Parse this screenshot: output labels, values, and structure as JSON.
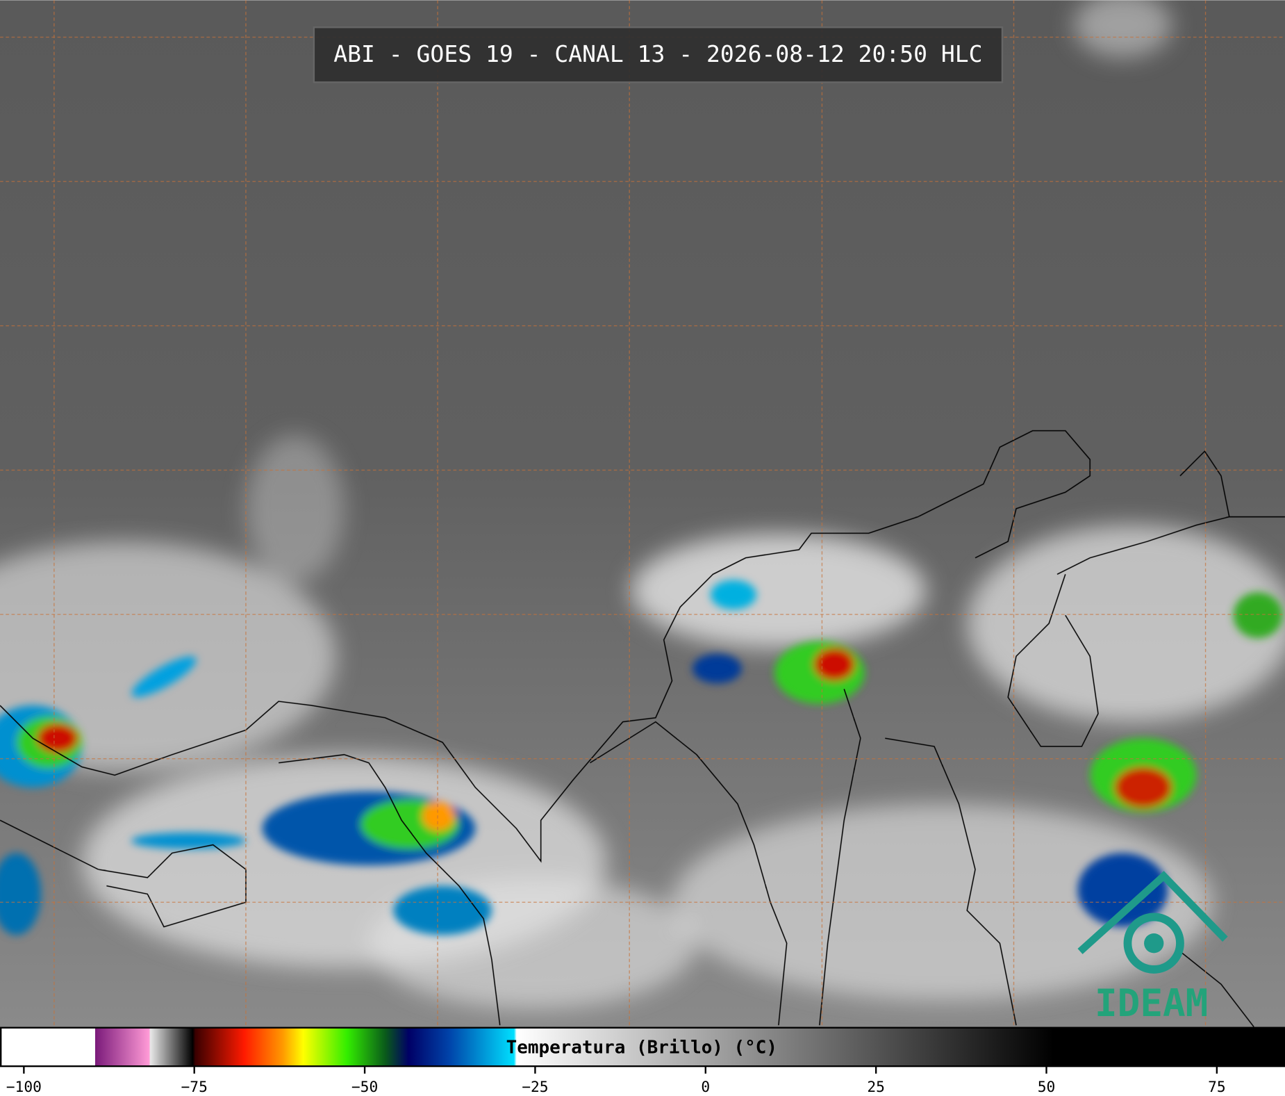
{
  "header": {
    "title": "ABI - GOES 19 - CANAL 13 - 2026-08-12 20:50 HLC"
  },
  "colorbar": {
    "label": "Temperatura (Brillo) (°C)",
    "lim": [
      -103.5,
      85
    ],
    "ticks": [
      {
        "value": -100,
        "label": "−100"
      },
      {
        "value": -75,
        "label": "−75"
      },
      {
        "value": -50,
        "label": "−50"
      },
      {
        "value": -25,
        "label": "−25"
      },
      0,
      25,
      50,
      75
    ]
  },
  "logo": {
    "text": "IDEAM"
  }
}
